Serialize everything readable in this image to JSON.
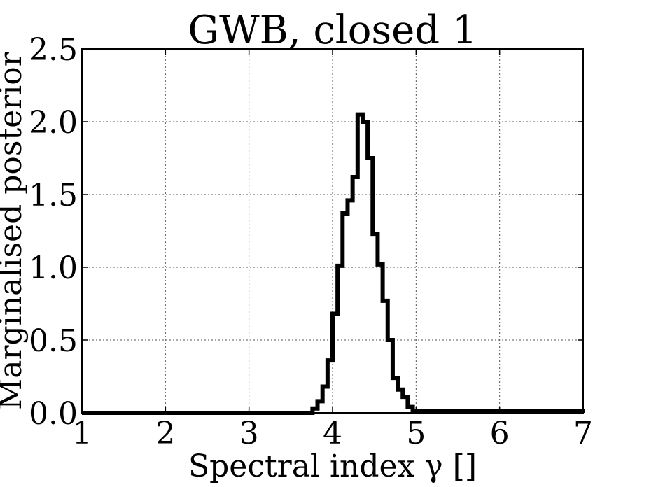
{
  "chart_data": {
    "type": "line",
    "title": "GWB, closed 1",
    "xlabel": "Spectral index γ []",
    "ylabel": "Marginalised posterior",
    "xlim": [
      1,
      7
    ],
    "ylim": [
      0,
      2.5
    ],
    "xticks": [
      "1",
      "2",
      "3",
      "4",
      "5",
      "6",
      "7"
    ],
    "yticks": [
      "0.0",
      "0.5",
      "1.0",
      "1.5",
      "2.0",
      "2.5"
    ],
    "grid": true,
    "style": "step",
    "line_color": "#000000",
    "series": [
      {
        "x": [
          1.0,
          3.7,
          3.76,
          3.82,
          3.88,
          3.94,
          4.0,
          4.06,
          4.12,
          4.18,
          4.24,
          4.3,
          4.36,
          4.42,
          4.48,
          4.54,
          4.6,
          4.66,
          4.72,
          4.78,
          4.84,
          4.9,
          4.96,
          7.0
        ],
        "values": [
          0.0,
          0.0,
          0.03,
          0.08,
          0.18,
          0.36,
          0.68,
          1.01,
          1.37,
          1.46,
          1.62,
          2.05,
          2.0,
          1.75,
          1.23,
          1.02,
          0.77,
          0.5,
          0.24,
          0.16,
          0.11,
          0.04,
          0.01,
          0.0
        ]
      }
    ]
  }
}
